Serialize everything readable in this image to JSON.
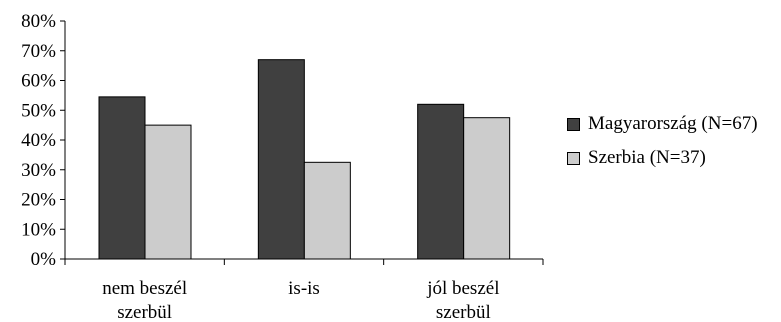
{
  "chart_data": {
    "type": "bar",
    "categories": [
      [
        "nem beszél",
        "szerbül"
      ],
      [
        "is-is"
      ],
      [
        "jól beszél",
        "szerbül"
      ]
    ],
    "series": [
      {
        "name": "Magyarország (N=67)",
        "values": [
          54.5,
          67,
          52
        ],
        "color": "#404040"
      },
      {
        "name": "Szerbia (N=37)",
        "values": [
          45,
          32.5,
          47.5
        ],
        "color": "#cccccc"
      }
    ],
    "ylim": [
      0,
      80
    ],
    "yticks": [
      0,
      10,
      20,
      30,
      40,
      50,
      60,
      70,
      80
    ],
    "ytick_labels": [
      "0%",
      "10%",
      "20%",
      "30%",
      "40%",
      "50%",
      "60%",
      "70%",
      "80%"
    ],
    "title": "",
    "xlabel": "",
    "ylabel": "",
    "grid": false,
    "legend_position": "right"
  }
}
